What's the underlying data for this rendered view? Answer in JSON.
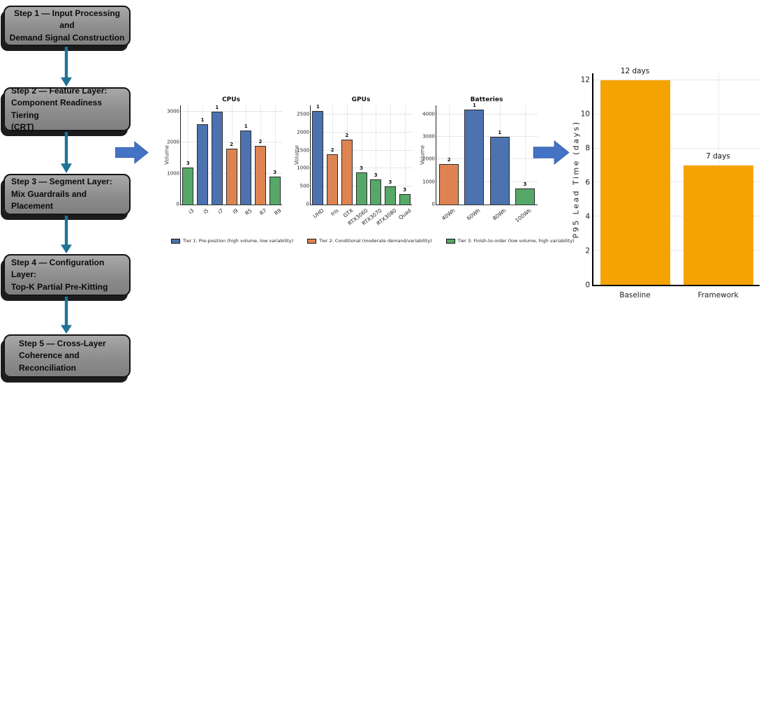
{
  "flow": {
    "steps": [
      {
        "label": "Step 1 — Input Processing and\nDemand Signal Construction"
      },
      {
        "label": "Step 2 — Feature Layer:\nComponent Readiness Tiering\n(CRT)"
      },
      {
        "label": "Step 3 — Segment Layer:\nMix Guardrails and Placement"
      },
      {
        "label": "Step 4 — Configuration Layer:\nTop-K Partial Pre-Kitting"
      },
      {
        "label": "Step 5 — Cross-Layer\nCoherence and Reconciliation"
      }
    ],
    "connector_color": "#1F7396",
    "block_arrow_color": "#4472C4"
  },
  "tier_colors": {
    "1": "#4C72B0",
    "2": "#DD8452",
    "3": "#55A868"
  },
  "legend": [
    {
      "color": "#4C72B0",
      "label": "Tier 1: Pre-position (high volume, low variability)"
    },
    {
      "color": "#DD8452",
      "label": "Tier 2: Conditional (moderate demand/variability)"
    },
    {
      "color": "#55A868",
      "label": "Tier 3: Finish-to-order (low volume, high variability)"
    }
  ],
  "chart_data": [
    {
      "type": "bar",
      "title": "CPUs",
      "xlabel": "",
      "ylabel": "Volume",
      "ylim": [
        0,
        3200
      ],
      "yticks": [
        0,
        1000,
        2000,
        3000
      ],
      "grid": "dotted",
      "categories": [
        "i3",
        "i5",
        "i7",
        "i9",
        "R5",
        "R7",
        "R9"
      ],
      "values": [
        1200,
        2600,
        3000,
        1800,
        2400,
        1900,
        900
      ],
      "tiers": [
        3,
        1,
        1,
        2,
        1,
        2,
        3
      ],
      "bar_labels": [
        "3",
        "1",
        "1",
        "2",
        "1",
        "2",
        "3"
      ]
    },
    {
      "type": "bar",
      "title": "GPUs",
      "xlabel": "",
      "ylabel": "Volume",
      "ylim": [
        0,
        2750
      ],
      "yticks": [
        0,
        500,
        1000,
        1500,
        2000,
        2500
      ],
      "grid": "dotted",
      "categories": [
        "UHD",
        "Iris",
        "GTX",
        "RTX3060",
        "RTX3070",
        "RTX3080",
        "Quad"
      ],
      "values": [
        2600,
        1400,
        1800,
        900,
        700,
        500,
        300
      ],
      "tiers": [
        1,
        2,
        2,
        3,
        3,
        3,
        3
      ],
      "bar_labels": [
        "1",
        "2",
        "2",
        "3",
        "3",
        "3",
        "3"
      ]
    },
    {
      "type": "bar",
      "title": "Batteries",
      "xlabel": "",
      "ylabel": "Volume",
      "ylim": [
        0,
        4400
      ],
      "yticks": [
        0,
        1000,
        2000,
        3000,
        4000
      ],
      "grid": "dotted",
      "categories": [
        "40Wh",
        "60Wh",
        "80Wh",
        "100Wh"
      ],
      "values": [
        1800,
        4200,
        3000,
        700
      ],
      "tiers": [
        2,
        1,
        1,
        3
      ],
      "bar_labels": [
        "2",
        "1",
        "1",
        "3"
      ]
    },
    {
      "type": "bar",
      "title": "",
      "xlabel": "",
      "ylabel": "P95 Lead Time (days)",
      "ylim": [
        0,
        12.4
      ],
      "yticks": [
        0,
        2,
        4,
        6,
        8,
        10,
        12
      ],
      "grid": "dotted",
      "categories": [
        "Baseline",
        "Framework"
      ],
      "values": [
        12,
        7
      ],
      "bar_labels": [
        "12 days",
        "7 days"
      ],
      "bar_color": "#F5A300"
    }
  ]
}
